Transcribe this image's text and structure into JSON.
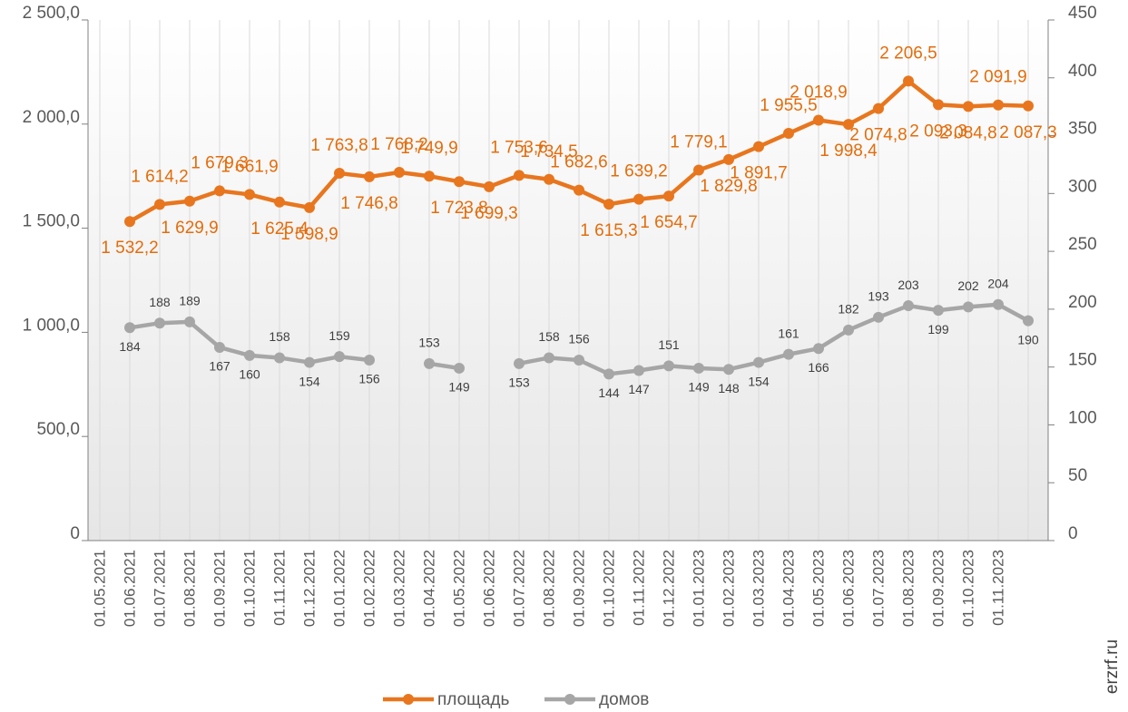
{
  "chart_data": {
    "type": "line",
    "categories": [
      "01.05.2021",
      "01.06.2021",
      "01.07.2021",
      "01.08.2021",
      "01.09.2021",
      "01.10.2021",
      "01.11.2021",
      "01.12.2021",
      "01.01.2022",
      "01.02.2022",
      "01.03.2022",
      "01.04.2022",
      "01.05.2022",
      "01.06.2022",
      "01.07.2022",
      "01.08.2022",
      "01.09.2022",
      "01.10.2022",
      "01.11.2022",
      "01.12.2022",
      "01.01.2023",
      "01.02.2023",
      "01.03.2023",
      "01.04.2023",
      "01.05.2023",
      "01.06.2023",
      "01.07.2023",
      "01.08.2023",
      "01.09.2023",
      "01.10.2023",
      "01.11.2023",
      null
    ],
    "series": [
      {
        "name": "площадь",
        "color": "#e8761e",
        "values": [
          null,
          1532.2,
          1614.2,
          1629.9,
          1679.3,
          1661.9,
          1625.4,
          1598.9,
          1763.8,
          1746.8,
          1768.2,
          1749.9,
          1723.8,
          1699.3,
          1753.6,
          1734.5,
          1682.6,
          1615.3,
          1639.2,
          1654.7,
          1779.1,
          1829.8,
          1891.7,
          1955.5,
          2018.9,
          1998.4,
          2074.8,
          2206.5,
          2093.3,
          2084.8,
          2091.9,
          2087.3
        ],
        "value_labels": [
          null,
          "1 532,2",
          "1 614,2",
          "1 629,9",
          "1 679,3",
          "1 661,9",
          "1 625,4",
          "1 598,9",
          "1 763,8",
          "1 746,8",
          "1 768,2",
          "1 749,9",
          "1 723,8",
          "1 699,3",
          "1 753,6",
          "1 734,5",
          "1 682,6",
          "1 615,3",
          "1 639,2",
          "1 654,7",
          "1 779,1",
          "1 829,8",
          "1 891,7",
          "1 955,5",
          "2 018,9",
          "1 998,4",
          "2 074,8",
          "2 206,5",
          "2 093,3",
          "2 084,8",
          "2 091,9",
          "2 087,3"
        ]
      },
      {
        "name": "домов",
        "color": "#a6a6a6",
        "axis": "y2",
        "values": [
          null,
          184,
          188,
          189,
          167,
          160,
          158,
          154,
          159,
          156,
          null,
          153,
          149,
          null,
          153,
          158,
          156,
          144,
          147,
          151,
          149,
          148,
          154,
          161,
          166,
          182,
          193,
          203,
          199,
          202,
          204,
          190
        ]
      }
    ],
    "ylim": [
      0,
      2500
    ],
    "yticks": [
      0,
      {
        "value": 500,
        "label": "500,0"
      },
      {
        "value": 1000,
        "label": "1 000,0"
      },
      {
        "value": 1500,
        "label": "1 500,0"
      },
      {
        "value": 2000,
        "label": "2 000,0"
      },
      {
        "value": 2500,
        "label": "2 500,0"
      }
    ],
    "y2lim": [
      0,
      450
    ],
    "y2ticks": [
      0,
      50,
      100,
      150,
      200,
      250,
      300,
      350,
      400,
      450
    ],
    "grid": true,
    "legend": "bottom",
    "source": "erzrf.ru"
  }
}
